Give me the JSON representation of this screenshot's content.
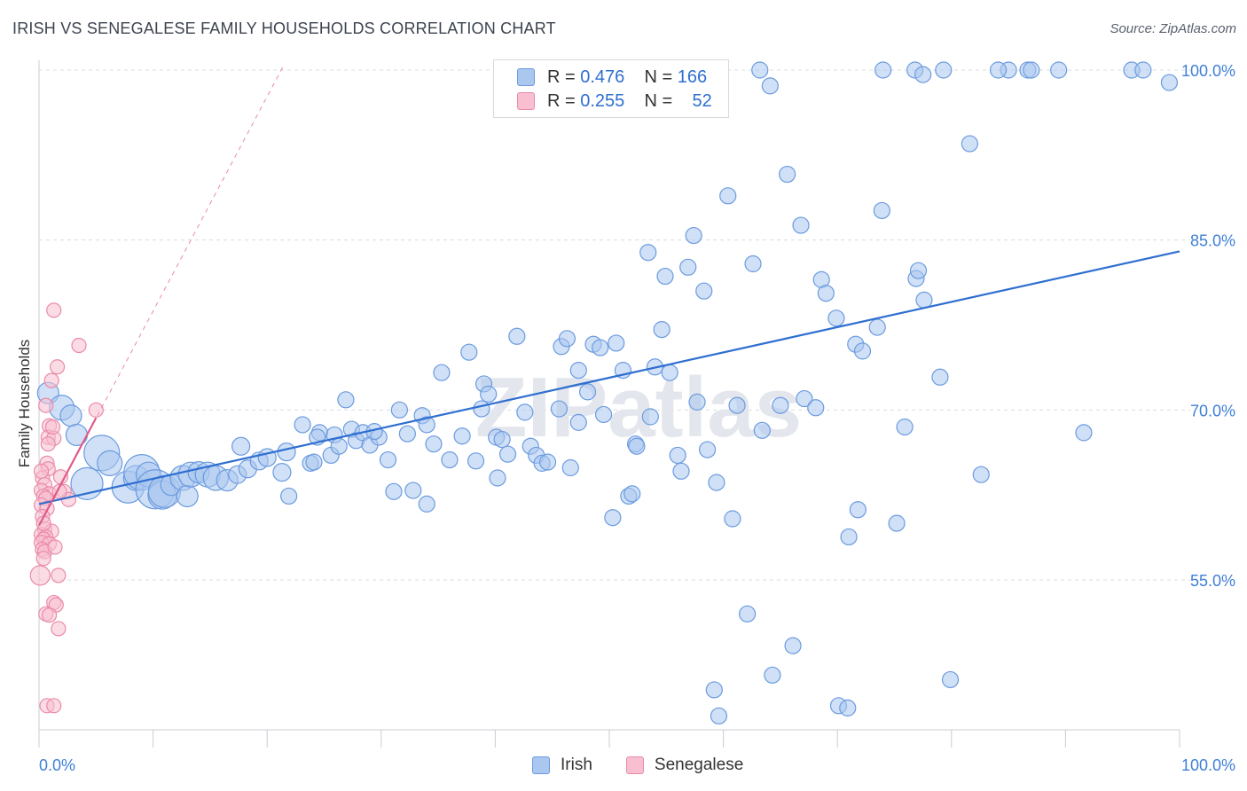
{
  "header": {
    "title": "IRISH VS SENEGALESE FAMILY HOUSEHOLDS CORRELATION CHART",
    "source": "Source: ZipAtlas.com"
  },
  "watermark": "ZIPatlas",
  "legend": {
    "rows": [
      {
        "r_label": "R =",
        "r_value": "0.476",
        "n_label": "N =",
        "n_value": "166"
      },
      {
        "r_label": "R =",
        "r_value": "0.255",
        "n_label": "N =",
        "n_value": "52"
      }
    ],
    "series": [
      "Irish",
      "Senegalese"
    ]
  },
  "colors": {
    "irish_fill": "#a9c7ef",
    "irish_stroke": "#6b9be0",
    "irish_line": "#2f6fd0",
    "seneg_fill": "#f7bfd0",
    "seneg_stroke": "#ea8aa8",
    "seneg_line": "#e05a8a",
    "axis_text": "#3f7fd6",
    "grid": "#d8dce2"
  },
  "chart_data": {
    "type": "scatter",
    "title": "IRISH VS SENEGALESE FAMILY HOUSEHOLDS CORRELATION CHART",
    "xlabel": "",
    "ylabel": "Family Households",
    "xlim": [
      0,
      100
    ],
    "ylim": [
      40,
      103
    ],
    "x_tick_labels": [
      "0.0%",
      "100.0%"
    ],
    "y_ticks": [
      55,
      70,
      85,
      100
    ],
    "y_tick_labels": [
      "55.0%",
      "70.0%",
      "85.0%",
      "100.0%"
    ],
    "grid": true,
    "legend_position": "top-center",
    "series": [
      {
        "name": "Irish",
        "r": 0.476,
        "n": 166,
        "trend": {
          "x0": 0,
          "y0": 61.7,
          "x1": 100,
          "y1": 84.0
        },
        "points": [
          [
            0.8,
            71.5,
            12
          ],
          [
            2,
            70.2,
            14
          ],
          [
            2.8,
            69.5,
            12
          ],
          [
            3.3,
            67.8,
            12
          ],
          [
            4.2,
            63.5,
            18
          ],
          [
            5.5,
            66.2,
            20
          ],
          [
            6.2,
            65.3,
            14
          ],
          [
            7.8,
            63.2,
            18
          ],
          [
            8.5,
            64.0,
            14
          ],
          [
            9,
            64.5,
            20
          ],
          [
            9.6,
            64.3,
            14
          ],
          [
            10.2,
            63.0,
            22
          ],
          [
            10.8,
            62.5,
            16
          ],
          [
            11,
            62.8,
            18
          ],
          [
            11.6,
            63.4,
            12
          ],
          [
            12.6,
            64.0,
            14
          ],
          [
            13,
            62.4,
            12
          ],
          [
            13.3,
            64.3,
            14
          ],
          [
            14,
            64.5,
            12
          ],
          [
            14.8,
            64.3,
            14
          ],
          [
            15.5,
            64.0,
            14
          ],
          [
            16.5,
            63.8,
            12
          ],
          [
            17.4,
            64.3,
            10
          ],
          [
            18.3,
            64.8,
            10
          ],
          [
            17.7,
            66.8,
            10
          ],
          [
            19.3,
            65.5,
            10
          ],
          [
            20,
            65.8,
            10
          ],
          [
            21.3,
            64.5,
            10
          ],
          [
            21.7,
            66.3,
            10
          ],
          [
            21.9,
            62.4,
            9
          ],
          [
            23.1,
            68.7,
            9
          ],
          [
            23.8,
            65.3,
            9
          ],
          [
            24.1,
            65.4,
            9
          ],
          [
            24.6,
            68.0,
            9
          ],
          [
            24.4,
            67.6,
            9
          ],
          [
            25.6,
            66.0,
            9
          ],
          [
            25.9,
            67.8,
            9
          ],
          [
            26.3,
            66.8,
            9
          ],
          [
            26.9,
            70.9,
            9
          ],
          [
            27.4,
            68.3,
            9
          ],
          [
            27.8,
            67.3,
            9
          ],
          [
            28.4,
            68.0,
            9
          ],
          [
            29.0,
            66.9,
            9
          ],
          [
            29.8,
            67.6,
            9
          ],
          [
            29.4,
            68.1,
            9
          ],
          [
            30.6,
            65.6,
            9
          ],
          [
            31.6,
            70.0,
            9
          ],
          [
            31.1,
            62.8,
            9
          ],
          [
            32.3,
            67.9,
            9
          ],
          [
            32.8,
            62.9,
            9
          ],
          [
            33.6,
            69.5,
            9
          ],
          [
            34.0,
            68.7,
            9
          ],
          [
            34.0,
            61.7,
            9
          ],
          [
            34.6,
            67.0,
            9
          ],
          [
            36.0,
            65.6,
            9
          ],
          [
            35.3,
            73.3,
            9
          ],
          [
            37.1,
            67.7,
            9
          ],
          [
            37.7,
            75.1,
            9
          ],
          [
            38.3,
            65.5,
            9
          ],
          [
            38.8,
            70.1,
            9
          ],
          [
            39.0,
            72.3,
            9
          ],
          [
            39.4,
            71.4,
            9
          ],
          [
            40.1,
            67.6,
            9
          ],
          [
            40.2,
            64.0,
            9
          ],
          [
            40.6,
            67.4,
            9
          ],
          [
            41.1,
            66.1,
            9
          ],
          [
            41.9,
            76.5,
            9
          ],
          [
            42.6,
            69.8,
            9
          ],
          [
            43.1,
            66.8,
            9
          ],
          [
            43.6,
            66.0,
            9
          ],
          [
            44.1,
            65.3,
            9
          ],
          [
            44.6,
            65.4,
            9
          ],
          [
            45.6,
            70.1,
            9
          ],
          [
            45.8,
            75.6,
            9
          ],
          [
            46.3,
            76.3,
            9
          ],
          [
            46.6,
            64.9,
            9
          ],
          [
            47.3,
            68.9,
            9
          ],
          [
            47.3,
            73.5,
            9
          ],
          [
            48.1,
            71.6,
            9
          ],
          [
            48.6,
            75.8,
            9
          ],
          [
            49.2,
            75.5,
            9
          ],
          [
            49.5,
            69.6,
            9
          ],
          [
            50.3,
            60.5,
            9
          ],
          [
            51.2,
            73.5,
            9
          ],
          [
            51.7,
            62.4,
            9
          ],
          [
            52.0,
            62.6,
            9
          ],
          [
            52.3,
            67.0,
            9
          ],
          [
            53.4,
            83.9,
            9
          ],
          [
            53.6,
            69.4,
            9
          ],
          [
            54.0,
            73.8,
            9
          ],
          [
            54.6,
            77.1,
            9
          ],
          [
            54.9,
            81.8,
            9
          ],
          [
            55.3,
            73.3,
            9
          ],
          [
            56.0,
            66.0,
            9
          ],
          [
            56.3,
            64.6,
            9
          ],
          [
            56.9,
            82.6,
            9
          ],
          [
            57.4,
            85.4,
            9
          ],
          [
            57.7,
            70.7,
            9
          ],
          [
            58.6,
            66.5,
            9
          ],
          [
            59.4,
            63.6,
            9
          ],
          [
            60.4,
            88.9,
            9
          ],
          [
            60.8,
            60.4,
            9
          ],
          [
            61.2,
            70.4,
            9
          ],
          [
            62.1,
            52.0,
            9
          ],
          [
            62.6,
            82.9,
            9
          ],
          [
            63.4,
            68.2,
            9
          ],
          [
            64.1,
            98.6,
            9
          ],
          [
            65.0,
            70.4,
            9
          ],
          [
            65.6,
            90.8,
            9
          ],
          [
            66.1,
            49.2,
            9
          ],
          [
            66.8,
            86.3,
            9
          ],
          [
            67.1,
            71.0,
            9
          ],
          [
            68.1,
            70.2,
            9
          ],
          [
            68.6,
            81.5,
            9
          ],
          [
            69.0,
            80.3,
            9
          ],
          [
            69.9,
            78.1,
            9
          ],
          [
            71.0,
            58.8,
            9
          ],
          [
            71.6,
            75.8,
            9
          ],
          [
            71.8,
            61.2,
            9
          ],
          [
            72.2,
            75.2,
            9
          ],
          [
            73.5,
            77.3,
            9
          ],
          [
            73.9,
            87.6,
            9
          ],
          [
            75.2,
            60.0,
            9
          ],
          [
            75.9,
            68.5,
            9
          ],
          [
            76.9,
            81.6,
            9
          ],
          [
            77.1,
            82.3,
            9
          ],
          [
            77.6,
            79.7,
            9
          ],
          [
            79.0,
            72.9,
            9
          ],
          [
            79.9,
            46.2,
            9
          ],
          [
            81.6,
            93.5,
            9
          ],
          [
            82.6,
            64.3,
            9
          ],
          [
            85.0,
            100.0,
            9
          ],
          [
            84.1,
            100.0,
            9
          ],
          [
            86.7,
            100.0,
            9
          ],
          [
            87.0,
            100.0,
            9
          ],
          [
            89.4,
            100.0,
            9
          ],
          [
            95.8,
            100.0,
            9
          ],
          [
            96.8,
            100.0,
            9
          ],
          [
            91.6,
            68.0,
            9
          ],
          [
            99.1,
            98.9,
            9
          ],
          [
            59.2,
            45.3,
            9
          ],
          [
            59.6,
            43.0,
            9
          ],
          [
            64.3,
            46.6,
            9
          ],
          [
            70.1,
            43.9,
            9
          ],
          [
            70.9,
            43.7,
            9
          ],
          [
            74.0,
            100.0,
            9
          ],
          [
            76.8,
            100.0,
            9
          ],
          [
            77.5,
            99.6,
            9
          ],
          [
            79.3,
            100.0,
            9
          ],
          [
            63.2,
            100.0,
            9
          ],
          [
            50.6,
            75.9,
            9
          ],
          [
            52.4,
            66.8,
            9
          ],
          [
            58.3,
            80.5,
            9
          ]
        ]
      },
      {
        "name": "Senegalese",
        "r": 0.255,
        "n": 52,
        "trend": {
          "x0": 0,
          "y0": 59.8,
          "x1": 5.0,
          "y1": 69.3
        },
        "trend_extended": {
          "x0": 0,
          "y0": 59.8,
          "x1": 21.5,
          "y1": 100.5
        },
        "points": [
          [
            1.3,
            78.8,
            8
          ],
          [
            3.5,
            75.7,
            8
          ],
          [
            1.6,
            73.8,
            8
          ],
          [
            1.1,
            72.6,
            8
          ],
          [
            0.6,
            70.4,
            8
          ],
          [
            5.0,
            70.0,
            8
          ],
          [
            0.9,
            68.6,
            8
          ],
          [
            0.8,
            67.6,
            8
          ],
          [
            1.3,
            67.5,
            8
          ],
          [
            0.7,
            65.3,
            8
          ],
          [
            0.8,
            64.8,
            8
          ],
          [
            0.3,
            64.0,
            8
          ],
          [
            1.9,
            64.1,
            8
          ],
          [
            0.5,
            63.4,
            8
          ],
          [
            0.2,
            62.9,
            8
          ],
          [
            0.9,
            62.6,
            8
          ],
          [
            2.2,
            62.8,
            8
          ],
          [
            0.4,
            62.4,
            8
          ],
          [
            0.6,
            62.2,
            8
          ],
          [
            2.6,
            62.1,
            8
          ],
          [
            0.2,
            61.6,
            8
          ],
          [
            0.7,
            61.3,
            8
          ],
          [
            0.3,
            60.6,
            8
          ],
          [
            0.5,
            59.5,
            8
          ],
          [
            0.2,
            59.0,
            8
          ],
          [
            1.1,
            59.3,
            8
          ],
          [
            0.6,
            58.8,
            8
          ],
          [
            0.4,
            58.6,
            8
          ],
          [
            0.2,
            58.3,
            8
          ],
          [
            0.9,
            58.2,
            8
          ],
          [
            0.3,
            57.7,
            8
          ],
          [
            0.5,
            57.5,
            8
          ],
          [
            1.4,
            57.9,
            8
          ],
          [
            0.1,
            55.4,
            11
          ],
          [
            1.7,
            55.4,
            8
          ],
          [
            1.3,
            53.0,
            8
          ],
          [
            1.5,
            52.8,
            8
          ],
          [
            0.6,
            52.0,
            8
          ],
          [
            0.9,
            51.9,
            8
          ],
          [
            1.7,
            50.7,
            8
          ],
          [
            0.7,
            43.9,
            8
          ],
          [
            1.3,
            43.9,
            8
          ],
          [
            0.2,
            64.6,
            8
          ],
          [
            0.4,
            60.0,
            8
          ],
          [
            1.8,
            62.8,
            8
          ],
          [
            0.4,
            56.9,
            8
          ],
          [
            0.8,
            67.0,
            8
          ],
          [
            1.2,
            68.5,
            8
          ]
        ]
      }
    ]
  }
}
